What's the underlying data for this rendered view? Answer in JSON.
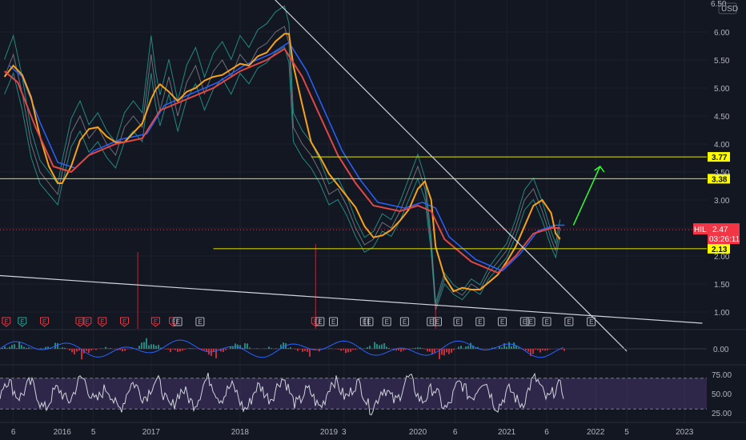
{
  "currency": "USD",
  "symbol_badge": "HIL",
  "last_price": "2.47",
  "countdown": "03:26:11",
  "top_partial_label": "6.50",
  "chart_data": {
    "type": "line",
    "ylim": [
      0.7,
      6.5
    ],
    "y_ticks": [
      "1.00",
      "1.50",
      "2.00",
      "2.50",
      "3.00",
      "3.50",
      "4.00",
      "4.50",
      "5.00",
      "5.50",
      "6.00"
    ],
    "y_tick_values": [
      1.0,
      1.5,
      2.0,
      2.5,
      3.0,
      3.5,
      4.0,
      4.5,
      5.0,
      5.5,
      6.0
    ],
    "x_ticks": [
      {
        "label": "6",
        "t": 2015.45
      },
      {
        "label": "2016",
        "t": 2016.0
      },
      {
        "label": "5",
        "t": 2016.35
      },
      {
        "label": "2017",
        "t": 2017.0
      },
      {
        "label": "2018",
        "t": 2018.0
      },
      {
        "label": "2019",
        "t": 2019.0
      },
      {
        "label": "3",
        "t": 2019.17
      },
      {
        "label": "2020",
        "t": 2020.0
      },
      {
        "label": "6",
        "t": 2020.42
      },
      {
        "label": "2021",
        "t": 2021.0
      },
      {
        "label": "6",
        "t": 2021.45
      },
      {
        "label": "2022",
        "t": 2022.0
      },
      {
        "label": "5",
        "t": 2022.35
      },
      {
        "label": "2023",
        "t": 2023.0
      }
    ],
    "price_points": [
      [
        2015.35,
        5.2
      ],
      [
        2015.45,
        5.6
      ],
      [
        2015.55,
        4.9
      ],
      [
        2015.65,
        4.0
      ],
      [
        2015.75,
        3.5
      ],
      [
        2015.85,
        3.3
      ],
      [
        2015.95,
        3.1
      ],
      [
        2016.0,
        3.5
      ],
      [
        2016.1,
        4.2
      ],
      [
        2016.2,
        4.5
      ],
      [
        2016.3,
        4.1
      ],
      [
        2016.4,
        4.3
      ],
      [
        2016.5,
        4.0
      ],
      [
        2016.6,
        3.8
      ],
      [
        2016.7,
        4.3
      ],
      [
        2016.8,
        4.5
      ],
      [
        2016.9,
        4.3
      ],
      [
        2017.0,
        5.6
      ],
      [
        2017.05,
        5.0
      ],
      [
        2017.1,
        4.6
      ],
      [
        2017.2,
        5.2
      ],
      [
        2017.3,
        4.5
      ],
      [
        2017.4,
        5.1
      ],
      [
        2017.5,
        5.4
      ],
      [
        2017.6,
        4.9
      ],
      [
        2017.7,
        5.3
      ],
      [
        2017.8,
        5.5
      ],
      [
        2017.9,
        5.2
      ],
      [
        2018.0,
        5.6
      ],
      [
        2018.1,
        5.4
      ],
      [
        2018.2,
        5.7
      ],
      [
        2018.3,
        5.8
      ],
      [
        2018.4,
        6.0
      ],
      [
        2018.5,
        6.1
      ],
      [
        2018.55,
        5.8
      ],
      [
        2018.6,
        4.3
      ],
      [
        2018.7,
        4.0
      ],
      [
        2018.8,
        3.8
      ],
      [
        2018.9,
        3.5
      ],
      [
        2019.0,
        3.1
      ],
      [
        2019.1,
        3.2
      ],
      [
        2019.2,
        2.9
      ],
      [
        2019.3,
        2.5
      ],
      [
        2019.4,
        2.2
      ],
      [
        2019.5,
        2.3
      ],
      [
        2019.6,
        2.6
      ],
      [
        2019.7,
        2.5
      ],
      [
        2019.8,
        2.8
      ],
      [
        2019.9,
        3.2
      ],
      [
        2020.0,
        3.6
      ],
      [
        2020.08,
        3.2
      ],
      [
        2020.15,
        2.2
      ],
      [
        2020.2,
        1.1
      ],
      [
        2020.3,
        1.6
      ],
      [
        2020.4,
        1.4
      ],
      [
        2020.5,
        1.3
      ],
      [
        2020.6,
        1.5
      ],
      [
        2020.7,
        1.4
      ],
      [
        2020.8,
        1.7
      ],
      [
        2020.9,
        1.9
      ],
      [
        2021.0,
        2.1
      ],
      [
        2021.1,
        2.5
      ],
      [
        2021.2,
        3.0
      ],
      [
        2021.3,
        3.2
      ],
      [
        2021.4,
        2.8
      ],
      [
        2021.5,
        2.3
      ],
      [
        2021.55,
        2.1
      ],
      [
        2021.6,
        2.5
      ]
    ],
    "ema_points": [
      [
        2015.35,
        5.3
      ],
      [
        2015.5,
        5.1
      ],
      [
        2015.7,
        4.3
      ],
      [
        2015.9,
        3.6
      ],
      [
        2016.1,
        3.5
      ],
      [
        2016.3,
        3.8
      ],
      [
        2016.6,
        4.0
      ],
      [
        2016.9,
        4.1
      ],
      [
        2017.1,
        4.6
      ],
      [
        2017.4,
        4.8
      ],
      [
        2017.7,
        5.0
      ],
      [
        2018.0,
        5.3
      ],
      [
        2018.3,
        5.5
      ],
      [
        2018.5,
        5.7
      ],
      [
        2018.7,
        5.2
      ],
      [
        2018.9,
        4.5
      ],
      [
        2019.1,
        3.8
      ],
      [
        2019.3,
        3.3
      ],
      [
        2019.5,
        2.9
      ],
      [
        2019.8,
        2.8
      ],
      [
        2020.0,
        2.9
      ],
      [
        2020.15,
        2.8
      ],
      [
        2020.3,
        2.3
      ],
      [
        2020.6,
        1.9
      ],
      [
        2020.9,
        1.7
      ],
      [
        2021.1,
        2.0
      ],
      [
        2021.3,
        2.4
      ],
      [
        2021.5,
        2.5
      ],
      [
        2021.6,
        2.5
      ]
    ],
    "horizontal_levels": [
      {
        "price": 3.77,
        "label": "3.77",
        "start": 2018.8
      },
      {
        "price": 3.38,
        "label": "3.38",
        "start": 2015.3
      },
      {
        "price": 2.13,
        "label": "2.13",
        "start": 2017.7
      }
    ],
    "trendlines": [
      {
        "from": [
          2018.0,
          7.2
        ],
        "to": [
          2022.35,
          0.3
        ]
      },
      {
        "from": [
          2015.3,
          1.65
        ],
        "to": [
          2023.2,
          0.8
        ]
      }
    ],
    "target_arrow": {
      "from": [
        2021.75,
        2.55
      ],
      "to": [
        2022.05,
        3.6
      ]
    },
    "earnings_markers": [
      {
        "t": 2015.37,
        "kind": "red",
        "label": "E"
      },
      {
        "t": 2015.55,
        "kind": "green",
        "label": "E"
      },
      {
        "t": 2015.8,
        "kind": "red",
        "label": "E"
      },
      {
        "t": 2016.2,
        "kind": "red",
        "label": "E"
      },
      {
        "t": 2016.28,
        "kind": "red",
        "label": "E"
      },
      {
        "t": 2016.45,
        "kind": "red",
        "label": "E"
      },
      {
        "t": 2016.7,
        "kind": "red",
        "label": "E"
      },
      {
        "t": 2017.05,
        "kind": "red",
        "label": "E"
      },
      {
        "t": 2017.25,
        "kind": "red",
        "label": "E"
      },
      {
        "t": 2017.3,
        "kind": "gray",
        "label": "E"
      },
      {
        "t": 2017.55,
        "kind": "gray",
        "label": "E"
      },
      {
        "t": 2018.85,
        "kind": "red",
        "label": "E"
      },
      {
        "t": 2018.9,
        "kind": "gray",
        "label": "E"
      },
      {
        "t": 2019.05,
        "kind": "gray",
        "label": "E"
      },
      {
        "t": 2019.4,
        "kind": "gray",
        "label": "E"
      },
      {
        "t": 2019.45,
        "kind": "gray",
        "label": "E"
      },
      {
        "t": 2019.65,
        "kind": "gray",
        "label": "E"
      },
      {
        "t": 2019.85,
        "kind": "gray",
        "label": "E"
      },
      {
        "t": 2020.15,
        "kind": "gray",
        "label": "E"
      },
      {
        "t": 2020.22,
        "kind": "gray",
        "label": "E"
      },
      {
        "t": 2020.45,
        "kind": "gray",
        "label": "E"
      },
      {
        "t": 2020.7,
        "kind": "gray",
        "label": "E"
      },
      {
        "t": 2020.95,
        "kind": "gray",
        "label": "E"
      },
      {
        "t": 2021.2,
        "kind": "gray",
        "label": "E"
      },
      {
        "t": 2021.27,
        "kind": "gray",
        "label": "E"
      },
      {
        "t": 2021.45,
        "kind": "gray",
        "label": "E"
      },
      {
        "t": 2021.7,
        "kind": "gray",
        "label": "E"
      },
      {
        "t": 2021.95,
        "kind": "gray",
        "label": "E"
      }
    ],
    "macd": {
      "zero_label": "0.00"
    },
    "rsi": {
      "ticks": [
        "75.00",
        "50.00",
        "25.00"
      ],
      "tick_values": [
        75,
        50,
        25
      ],
      "upper": 70,
      "lower": 30
    }
  }
}
